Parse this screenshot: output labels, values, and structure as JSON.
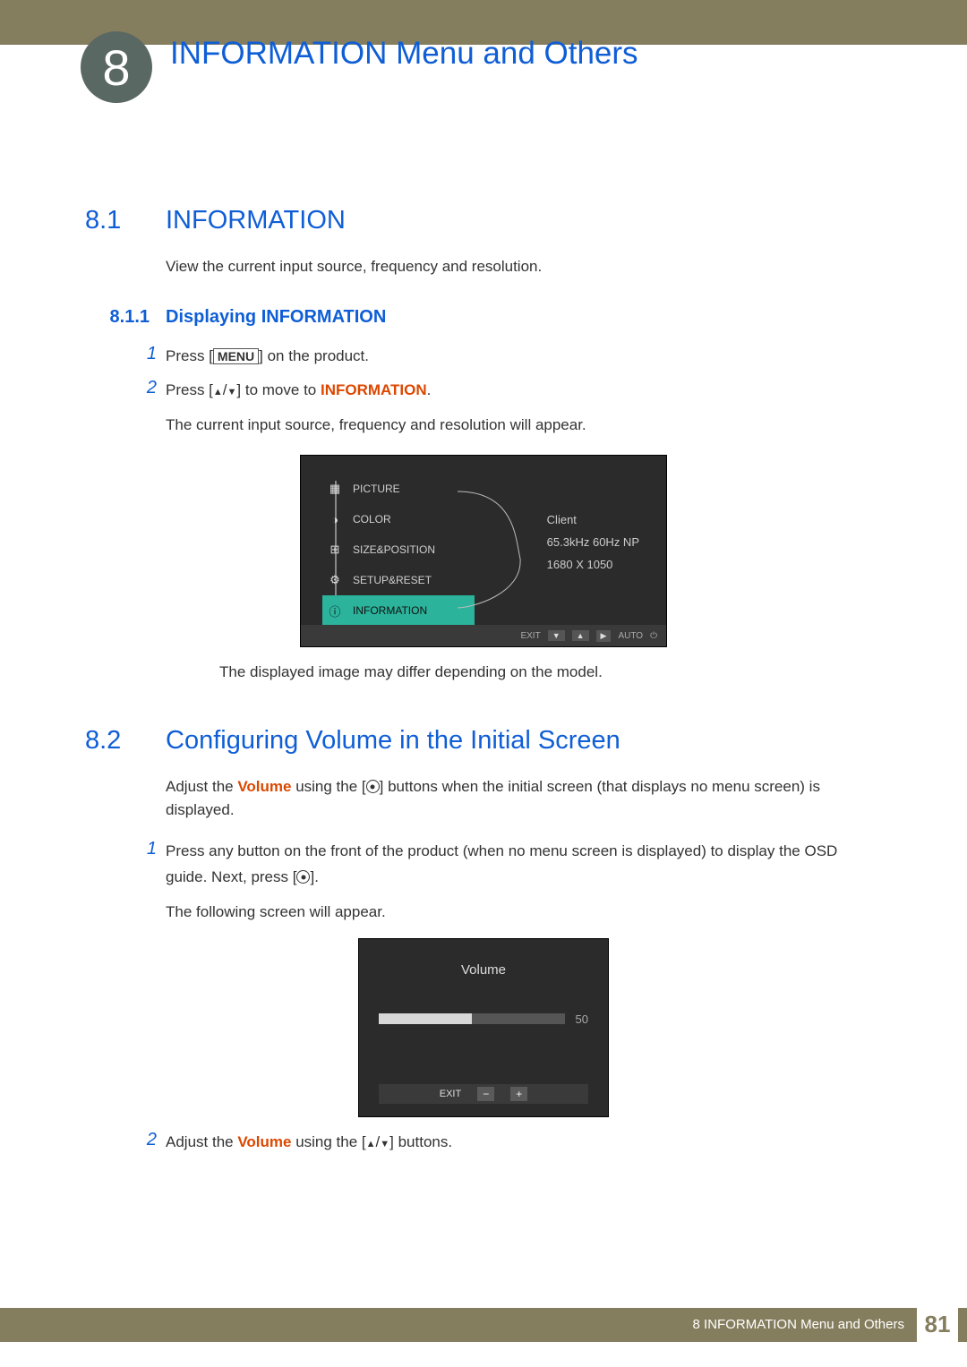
{
  "colors": {
    "header_bg": "#857e5e",
    "circle_bg": "#5a6863",
    "blue": "#0f5ed6",
    "orange": "#dc4700",
    "osd_bg": "#2b2b2b",
    "osd_highlight": "#2bb39b",
    "text": "#333333"
  },
  "chapter_number": "8",
  "chapter_title": "INFORMATION Menu and Others",
  "section1": {
    "num": "8.1",
    "title": "INFORMATION",
    "intro": "View the current input source, frequency and resolution.",
    "sub_num": "8.1.1",
    "sub_title": "Displaying INFORMATION",
    "step1_num": "1",
    "step1_pre": "Press [",
    "step1_key": "MENU",
    "step1_post": "] on the product.",
    "step2_num": "2",
    "step2_pre": "Press [",
    "step2_post": "] to move to ",
    "step2_target": "INFORMATION",
    "step2_end": ".",
    "step2_sub": "The current input source, frequency and resolution will appear.",
    "caption": "The displayed image may differ depending on the model."
  },
  "osd1": {
    "items": [
      "PICTURE",
      "COLOR",
      "SIZE&POSITION",
      "SETUP&RESET",
      "INFORMATION"
    ],
    "selected_index": 4,
    "info_line1": "Client",
    "info_line2": "65.3kHz 60Hz NP",
    "info_line3": "1680 X 1050",
    "bottom": {
      "exit": "EXIT",
      "auto": "AUTO"
    }
  },
  "section2": {
    "num": "8.2",
    "title": "Configuring Volume in the Initial Screen",
    "intro_pre": "Adjust the ",
    "intro_bold": "Volume",
    "intro_mid": " using the [",
    "intro_post": "] buttons when the initial screen (that displays no menu screen) is displayed.",
    "step1_num": "1",
    "step1_line1_pre": "Press any button on the front of the product (when no menu screen is displayed) to display the OSD guide. Next, press [",
    "step1_line1_post": "].",
    "step1_sub": "The following screen will appear.",
    "step2_num": "2",
    "step2_pre": "Adjust the ",
    "step2_bold": "Volume",
    "step2_mid": " using the [",
    "step2_post": "] buttons."
  },
  "osd2": {
    "title": "Volume",
    "value": "50",
    "fill_percent": 50,
    "exit": "EXIT",
    "minus": "−",
    "plus": "+"
  },
  "footer": {
    "chapter_ref": "8 INFORMATION Menu and Others",
    "page": "81"
  }
}
